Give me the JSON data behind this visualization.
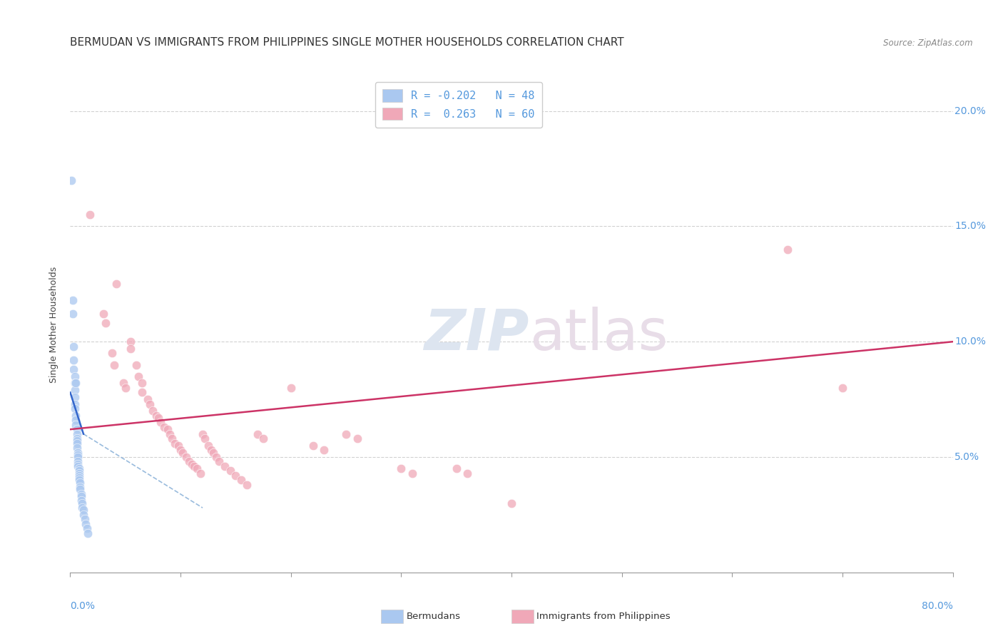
{
  "title": "BERMUDAN VS IMMIGRANTS FROM PHILIPPINES SINGLE MOTHER HOUSEHOLDS CORRELATION CHART",
  "source": "Source: ZipAtlas.com",
  "ylabel": "Single Mother Households",
  "ytick_labels": [
    "5.0%",
    "10.0%",
    "15.0%",
    "20.0%"
  ],
  "ytick_values": [
    0.05,
    0.1,
    0.15,
    0.2
  ],
  "xlim": [
    0.0,
    0.8
  ],
  "ylim": [
    0.0,
    0.215
  ],
  "legend_entries": [
    {
      "label": "R = -0.202   N = 48",
      "color": "#aac8f0"
    },
    {
      "label": "R =  0.263   N = 60",
      "color": "#f0a8b8"
    }
  ],
  "footer_legend": [
    {
      "label": "Bermudans",
      "color": "#aac8f0"
    },
    {
      "label": "Immigrants from Philippines",
      "color": "#f0a8b8"
    }
  ],
  "blue_scatter": [
    [
      0.001,
      0.17
    ],
    [
      0.002,
      0.118
    ],
    [
      0.002,
      0.112
    ],
    [
      0.003,
      0.098
    ],
    [
      0.003,
      0.092
    ],
    [
      0.003,
      0.088
    ],
    [
      0.004,
      0.085
    ],
    [
      0.004,
      0.082
    ],
    [
      0.004,
      0.079
    ],
    [
      0.004,
      0.076
    ],
    [
      0.004,
      0.073
    ],
    [
      0.004,
      0.071
    ],
    [
      0.005,
      0.082
    ],
    [
      0.005,
      0.068
    ],
    [
      0.005,
      0.066
    ],
    [
      0.005,
      0.064
    ],
    [
      0.006,
      0.062
    ],
    [
      0.006,
      0.06
    ],
    [
      0.006,
      0.058
    ],
    [
      0.006,
      0.057
    ],
    [
      0.006,
      0.056
    ],
    [
      0.006,
      0.054
    ],
    [
      0.007,
      0.052
    ],
    [
      0.007,
      0.051
    ],
    [
      0.007,
      0.05
    ],
    [
      0.007,
      0.048
    ],
    [
      0.007,
      0.047
    ],
    [
      0.007,
      0.046
    ],
    [
      0.008,
      0.045
    ],
    [
      0.008,
      0.044
    ],
    [
      0.008,
      0.043
    ],
    [
      0.008,
      0.042
    ],
    [
      0.008,
      0.041
    ],
    [
      0.008,
      0.04
    ],
    [
      0.009,
      0.039
    ],
    [
      0.009,
      0.037
    ],
    [
      0.009,
      0.036
    ],
    [
      0.01,
      0.034
    ],
    [
      0.01,
      0.033
    ],
    [
      0.01,
      0.031
    ],
    [
      0.011,
      0.03
    ],
    [
      0.011,
      0.028
    ],
    [
      0.012,
      0.027
    ],
    [
      0.012,
      0.025
    ],
    [
      0.013,
      0.023
    ],
    [
      0.014,
      0.021
    ],
    [
      0.015,
      0.019
    ],
    [
      0.016,
      0.017
    ]
  ],
  "pink_scatter": [
    [
      0.018,
      0.155
    ],
    [
      0.03,
      0.112
    ],
    [
      0.032,
      0.108
    ],
    [
      0.038,
      0.095
    ],
    [
      0.04,
      0.09
    ],
    [
      0.042,
      0.125
    ],
    [
      0.048,
      0.082
    ],
    [
      0.05,
      0.08
    ],
    [
      0.055,
      0.1
    ],
    [
      0.055,
      0.097
    ],
    [
      0.06,
      0.09
    ],
    [
      0.062,
      0.085
    ],
    [
      0.065,
      0.082
    ],
    [
      0.065,
      0.078
    ],
    [
      0.07,
      0.075
    ],
    [
      0.072,
      0.073
    ],
    [
      0.075,
      0.07
    ],
    [
      0.078,
      0.068
    ],
    [
      0.08,
      0.067
    ],
    [
      0.082,
      0.065
    ],
    [
      0.085,
      0.063
    ],
    [
      0.088,
      0.062
    ],
    [
      0.09,
      0.06
    ],
    [
      0.092,
      0.058
    ],
    [
      0.095,
      0.056
    ],
    [
      0.098,
      0.055
    ],
    [
      0.1,
      0.053
    ],
    [
      0.102,
      0.052
    ],
    [
      0.105,
      0.05
    ],
    [
      0.108,
      0.048
    ],
    [
      0.11,
      0.047
    ],
    [
      0.112,
      0.046
    ],
    [
      0.115,
      0.045
    ],
    [
      0.118,
      0.043
    ],
    [
      0.12,
      0.06
    ],
    [
      0.122,
      0.058
    ],
    [
      0.125,
      0.055
    ],
    [
      0.128,
      0.053
    ],
    [
      0.13,
      0.052
    ],
    [
      0.132,
      0.05
    ],
    [
      0.135,
      0.048
    ],
    [
      0.14,
      0.046
    ],
    [
      0.145,
      0.044
    ],
    [
      0.15,
      0.042
    ],
    [
      0.155,
      0.04
    ],
    [
      0.16,
      0.038
    ],
    [
      0.17,
      0.06
    ],
    [
      0.175,
      0.058
    ],
    [
      0.2,
      0.08
    ],
    [
      0.22,
      0.055
    ],
    [
      0.23,
      0.053
    ],
    [
      0.25,
      0.06
    ],
    [
      0.26,
      0.058
    ],
    [
      0.3,
      0.045
    ],
    [
      0.31,
      0.043
    ],
    [
      0.35,
      0.045
    ],
    [
      0.36,
      0.043
    ],
    [
      0.4,
      0.03
    ],
    [
      0.65,
      0.14
    ],
    [
      0.7,
      0.08
    ]
  ],
  "blue_line_solid": {
    "x": [
      0.0,
      0.012
    ],
    "y": [
      0.078,
      0.06
    ]
  },
  "blue_line_dashed": {
    "x": [
      0.012,
      0.12
    ],
    "y": [
      0.06,
      0.028
    ]
  },
  "pink_line": {
    "x": [
      0.0,
      0.8
    ],
    "y": [
      0.062,
      0.1
    ]
  },
  "blue_solid_color": "#3366cc",
  "blue_dashed_color": "#99bbdd",
  "pink_line_color": "#cc3366",
  "scatter_blue_color": "#aac8f0",
  "scatter_pink_color": "#f0a8b8",
  "scatter_alpha": 0.75,
  "scatter_size": 80,
  "background_color": "#ffffff",
  "grid_color": "#cccccc",
  "title_fontsize": 11,
  "axis_label_fontsize": 9,
  "tick_color": "#5599dd",
  "tick_fontsize": 10
}
